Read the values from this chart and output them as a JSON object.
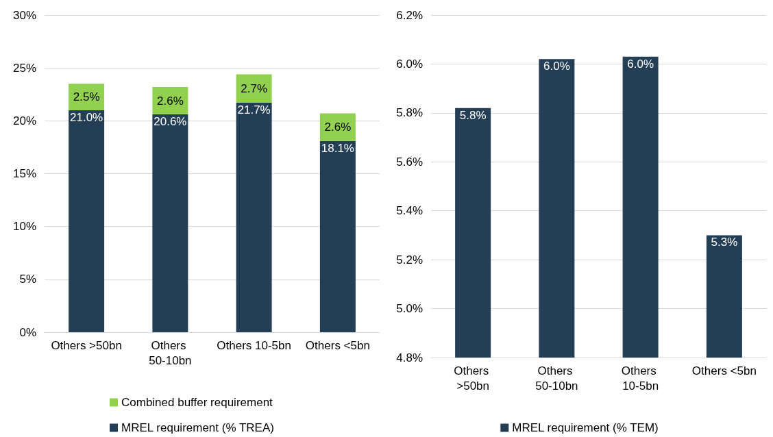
{
  "chart_data": [
    {
      "type": "bar",
      "stacked": true,
      "categories": [
        "Others >50bn",
        "Others 50-10bn",
        "Others 10-5bn",
        "Others <5bn"
      ],
      "series": [
        {
          "name": "MREL requirement (% TREA)",
          "color": "#243f55",
          "values": [
            21.0,
            20.6,
            21.7,
            18.1
          ],
          "value_labels": [
            "21.0%",
            "20.6%",
            "21.7%",
            "18.1%"
          ]
        },
        {
          "name": "Combined buffer requirement",
          "color": "#92d050",
          "values": [
            2.5,
            2.6,
            2.7,
            2.6
          ],
          "value_labels": [
            "2.5%",
            "2.6%",
            "2.7%",
            "2.6%"
          ]
        }
      ],
      "ylim": [
        0,
        30
      ],
      "yticks": [
        {
          "value": 0,
          "label": "0%"
        },
        {
          "value": 5,
          "label": "5%"
        },
        {
          "value": 10,
          "label": "10%"
        },
        {
          "value": 15,
          "label": "15%"
        },
        {
          "value": 20,
          "label": "20%"
        },
        {
          "value": 25,
          "label": "25%"
        },
        {
          "value": 30,
          "label": "30%"
        }
      ],
      "grid": "y",
      "legend": "bottom"
    },
    {
      "type": "bar",
      "categories": [
        "Others >50bn",
        "Others 50-10bn",
        "Others 10-5bn",
        "Others <5bn"
      ],
      "series": [
        {
          "name": "MREL requirement (% TEM)",
          "color": "#243f55",
          "values": [
            5.82,
            6.02,
            6.03,
            5.3
          ],
          "value_labels": [
            "5.8%",
            "6.0%",
            "6.0%",
            "5.3%"
          ]
        }
      ],
      "ylim": [
        4.8,
        6.2
      ],
      "yticks": [
        {
          "value": 4.8,
          "label": "4.8%"
        },
        {
          "value": 5.0,
          "label": "5.0%"
        },
        {
          "value": 5.2,
          "label": "5.2%"
        },
        {
          "value": 5.4,
          "label": "5.4%"
        },
        {
          "value": 5.6,
          "label": "5.6%"
        },
        {
          "value": 5.8,
          "label": "5.8%"
        },
        {
          "value": 6.0,
          "label": "6.0%"
        },
        {
          "value": 6.2,
          "label": "6.2%"
        }
      ],
      "grid": "y",
      "legend": "bottom"
    }
  ]
}
